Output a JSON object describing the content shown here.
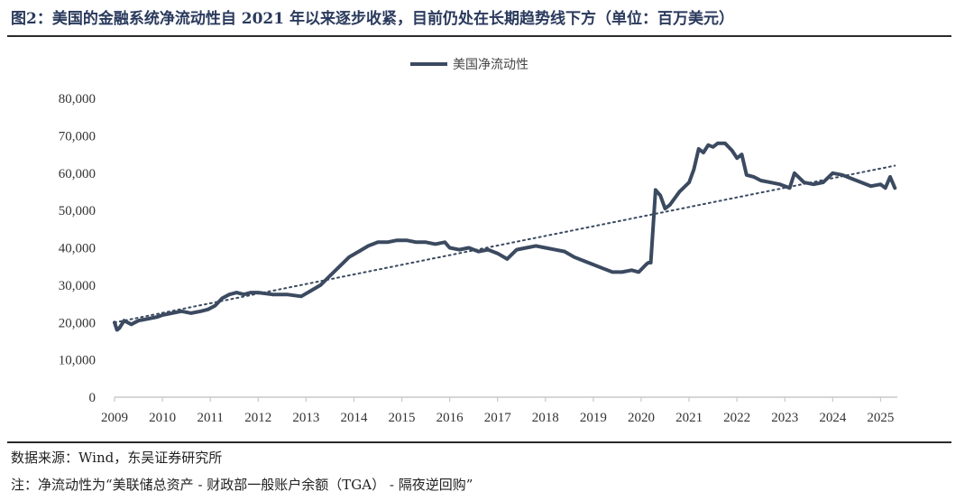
{
  "title": "图2：美国的金融系统净流动性自 2021 年以来逐步收紧，目前仍处在长期趋势线下方（单位：百万美元）",
  "source": "数据来源：Wind，东吴证券研究所",
  "note": "注：净流动性为“美联储总资产 - 财政部一般账户余额（TGA） - 隔夜逆回购”",
  "colors": {
    "series": "#3b4a60",
    "trend": "#3b4a60",
    "axis": "#c8c8c8"
  },
  "chart_data": {
    "type": "line",
    "title": "",
    "xlabel": "",
    "ylabel": "",
    "xlim": [
      2009.0,
      2025.35
    ],
    "ylim": [
      0,
      80000
    ],
    "y_ticks": [
      "0",
      "10,000",
      "20,000",
      "30,000",
      "40,000",
      "50,000",
      "60,000",
      "70,000",
      "80,000"
    ],
    "x_ticks": [
      "2009",
      "2010",
      "2011",
      "2012",
      "2013",
      "2014",
      "2015",
      "2016",
      "2017",
      "2018",
      "2019",
      "2020",
      "2021",
      "2022",
      "2023",
      "2024",
      "2025"
    ],
    "legend": "top-center",
    "grid": false,
    "series": [
      {
        "name": "美国净流动性",
        "x": [
          2009.0,
          2009.05,
          2009.1,
          2009.2,
          2009.35,
          2009.5,
          2009.7,
          2009.9,
          2010.0,
          2010.2,
          2010.4,
          2010.6,
          2010.8,
          2010.95,
          2011.1,
          2011.25,
          2011.4,
          2011.55,
          2011.7,
          2011.85,
          2012.0,
          2012.3,
          2012.6,
          2012.9,
          2013.1,
          2013.3,
          2013.5,
          2013.7,
          2013.9,
          2014.1,
          2014.3,
          2014.5,
          2014.7,
          2014.9,
          2015.1,
          2015.3,
          2015.5,
          2015.7,
          2015.9,
          2016.0,
          2016.2,
          2016.4,
          2016.6,
          2016.8,
          2017.0,
          2017.2,
          2017.4,
          2017.6,
          2017.8,
          2018.0,
          2018.2,
          2018.4,
          2018.6,
          2018.8,
          2019.0,
          2019.2,
          2019.4,
          2019.6,
          2019.8,
          2019.95,
          2020.1,
          2020.15,
          2020.2,
          2020.3,
          2020.4,
          2020.5,
          2020.6,
          2020.8,
          2021.0,
          2021.1,
          2021.2,
          2021.3,
          2021.4,
          2021.5,
          2021.6,
          2021.75,
          2021.9,
          2022.0,
          2022.1,
          2022.2,
          2022.35,
          2022.5,
          2022.7,
          2022.9,
          2023.0,
          2023.1,
          2023.2,
          2023.4,
          2023.6,
          2023.8,
          2024.0,
          2024.2,
          2024.4,
          2024.6,
          2024.8,
          2025.0,
          2025.1,
          2025.2,
          2025.3
        ],
        "y": [
          20000,
          18000,
          18500,
          20500,
          19500,
          20500,
          21000,
          21500,
          22000,
          22500,
          23000,
          22500,
          23000,
          23500,
          24500,
          26500,
          27500,
          28000,
          27500,
          28000,
          28000,
          27500,
          27500,
          27000,
          28500,
          30000,
          32500,
          35000,
          37500,
          39000,
          40500,
          41500,
          41500,
          42000,
          42000,
          41500,
          41500,
          41000,
          41500,
          40000,
          39500,
          40000,
          39000,
          39500,
          38500,
          37000,
          39500,
          40000,
          40500,
          40000,
          39500,
          39000,
          37500,
          36500,
          35500,
          34500,
          33500,
          33500,
          34000,
          33500,
          35500,
          36000,
          36000,
          55500,
          54000,
          50500,
          51500,
          55000,
          57500,
          61000,
          66500,
          65500,
          67500,
          67000,
          68000,
          68000,
          66000,
          64000,
          65000,
          59500,
          59000,
          58000,
          57500,
          57000,
          56500,
          56000,
          60000,
          57500,
          57000,
          57500,
          60000,
          59500,
          58500,
          57500,
          56500,
          57000,
          56000,
          59000,
          56000
        ]
      },
      {
        "name": "",
        "type": "trend",
        "x": [
          2009.0,
          2025.3
        ],
        "y": [
          20000,
          62000
        ]
      }
    ]
  }
}
